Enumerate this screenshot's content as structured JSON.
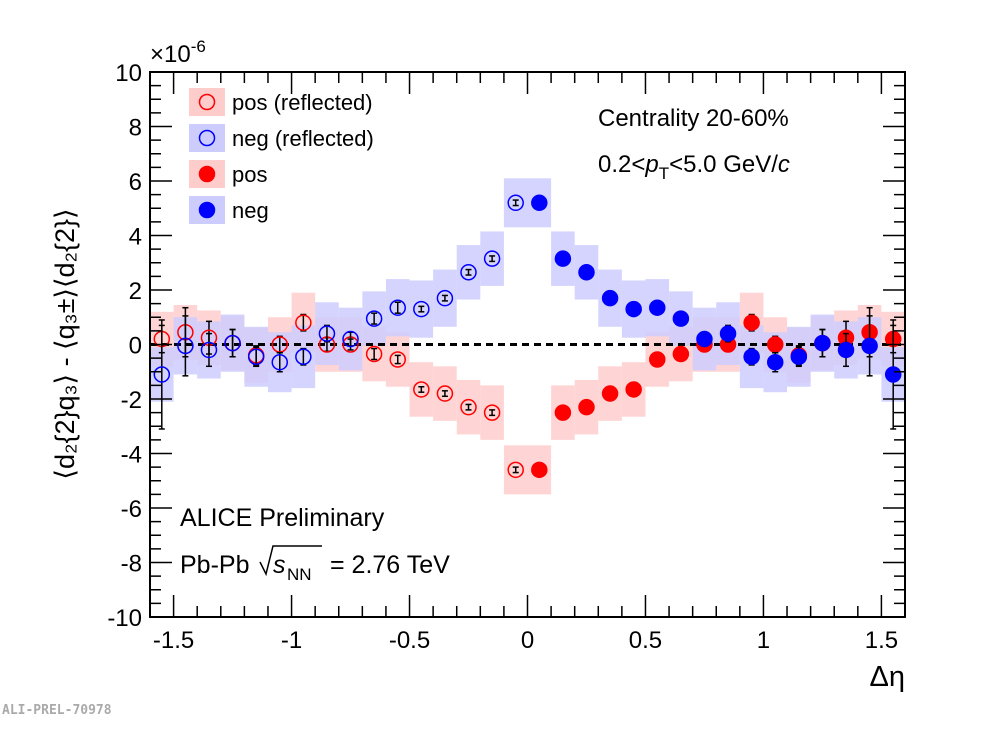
{
  "chart_data": {
    "type": "scatter",
    "xlabel": "Δη",
    "ylabel": "⟨d₂{2}q₃⟩ - ⟨q₃±⟩⟨d₂{2}⟩",
    "y_multiplier": "×10",
    "y_multiplier_exp": "-6",
    "xlim": [
      -1.6,
      1.6
    ],
    "ylim": [
      -10,
      10
    ],
    "x_ticks": [
      "-1.5",
      "-1",
      "-0.5",
      "0",
      "0.5",
      "1",
      "1.5"
    ],
    "y_ticks": [
      "-10",
      "-8",
      "-6",
      "-4",
      "-2",
      "0",
      "2",
      "4",
      "6",
      "8",
      "10"
    ],
    "reference_line": 0,
    "legend_position": "top-left",
    "annotations": {
      "centrality": "Centrality 20-60%",
      "pt_pre": "0.2<",
      "pt_p": "p",
      "pt_sub": "T",
      "pt_post": "<5.0 GeV/",
      "pt_c": "c",
      "alice": "ALICE Preliminary",
      "system": "Pb-Pb",
      "sqrt_s": "s",
      "sqrt_sub": "NN",
      "energy": "= 2.76 TeV"
    },
    "x": [
      0.05,
      0.15,
      0.25,
      0.35,
      0.45,
      0.55,
      0.65,
      0.75,
      0.85,
      0.95,
      1.05,
      1.15,
      1.25,
      1.35,
      1.45,
      1.55
    ],
    "series": [
      {
        "name": "pos",
        "color": "#ff0000",
        "band": "#ffcccc",
        "filled": true,
        "reflected": false,
        "values": [
          -4.6,
          -2.5,
          -2.3,
          -1.8,
          -1.65,
          -0.55,
          -0.35,
          0.0,
          0.0,
          0.8,
          0.0,
          -0.4,
          0.05,
          0.25,
          0.45,
          0.2
        ],
        "stat": [
          0.1,
          0.1,
          0.1,
          0.1,
          0.1,
          0.15,
          0.2,
          0.2,
          0.25,
          0.3,
          0.3,
          0.35,
          0.5,
          0.6,
          0.9,
          0.5
        ],
        "sys": [
          0.9,
          1.0,
          1.0,
          1.0,
          1.0,
          1.0,
          1.0,
          1.0,
          1.0,
          1.1,
          1.0,
          1.0,
          1.0,
          1.0,
          1.0,
          1.0
        ]
      },
      {
        "name": "neg",
        "color": "#0000ff",
        "band": "#ccccff",
        "filled": true,
        "reflected": false,
        "values": [
          5.2,
          3.15,
          2.65,
          1.7,
          1.3,
          1.35,
          0.95,
          0.2,
          0.4,
          -0.45,
          -0.65,
          -0.45,
          0.05,
          -0.2,
          -0.05,
          -1.1
        ],
        "stat": [
          0.1,
          0.1,
          0.1,
          0.1,
          0.1,
          0.2,
          0.2,
          0.25,
          0.3,
          0.3,
          0.35,
          0.35,
          0.5,
          0.6,
          1.1,
          2.0
        ],
        "sys": [
          0.9,
          1.0,
          1.0,
          1.05,
          1.05,
          1.05,
          1.0,
          1.15,
          1.15,
          1.15,
          1.1,
          1.1,
          1.05,
          1.05,
          1.05,
          1.0
        ]
      },
      {
        "name": "pos (reflected)",
        "color": "#ff0000",
        "band": "#ffcccc",
        "filled": false,
        "reflected": true
      },
      {
        "name": "neg (reflected)",
        "color": "#0000ff",
        "band": "#ccccff",
        "filled": false,
        "reflected": true
      }
    ]
  },
  "watermark": "ALI-PREL-70978"
}
